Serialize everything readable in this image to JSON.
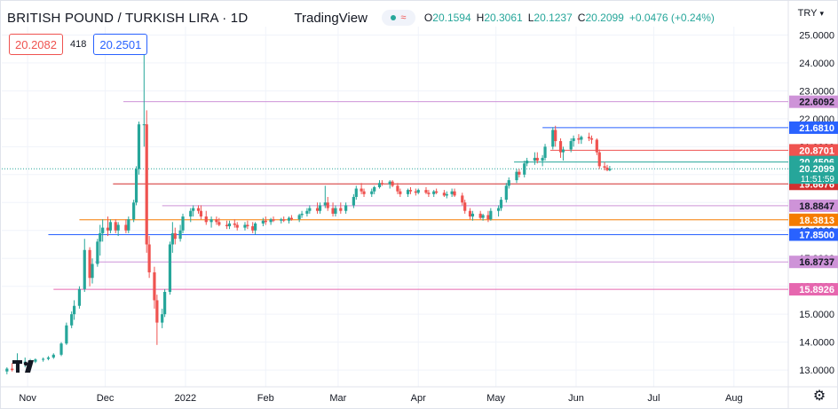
{
  "header": {
    "symbol_title": "BRITISH POUND / TURKISH LIRA · 1D",
    "brand": "TradingView",
    "ohlc": {
      "open_label": "O",
      "open_value": "20.1594",
      "high_label": "H",
      "high_value": "20.3061",
      "low_label": "L",
      "low_value": "20.1237",
      "close_label": "C",
      "close_value": "20.2099",
      "change": "+0.0476 (+0.24%)"
    }
  },
  "trade": {
    "sell_price": "20.2082",
    "spread": "418",
    "buy_price": "20.2501"
  },
  "currency": {
    "label": "TRY",
    "chevron": "chevron-down-icon"
  },
  "chart_data": {
    "type": "candlestick",
    "title": "BRITISH POUND / TURKISH LIRA · 1D",
    "ylim": [
      12.4,
      25.3
    ],
    "y_ticks": [
      {
        "value": 13.0,
        "label": "13.0000"
      },
      {
        "value": 14.0,
        "label": "14.0000"
      },
      {
        "value": 15.0,
        "label": "15.0000"
      },
      {
        "value": 16.0,
        "label": "16.0000"
      },
      {
        "value": 17.0,
        "label": "17.0000"
      },
      {
        "value": 18.0,
        "label": "18.0000"
      },
      {
        "value": 19.0,
        "label": "19.0000"
      },
      {
        "value": 20.0,
        "label": "20.0000"
      },
      {
        "value": 21.0,
        "label": "21.0000"
      },
      {
        "value": 22.0,
        "label": "22.0000"
      },
      {
        "value": 23.0,
        "label": "23.0000"
      },
      {
        "value": 24.0,
        "label": "24.0000"
      },
      {
        "value": 25.0,
        "label": "25.0000"
      }
    ],
    "x_ticks": [
      {
        "label": "Nov",
        "day": 0
      },
      {
        "label": "Dec",
        "day": 30
      },
      {
        "label": "2022",
        "day": 61
      },
      {
        "label": "Feb",
        "day": 92
      },
      {
        "label": "Mar",
        "day": 120
      },
      {
        "label": "Apr",
        "day": 151
      },
      {
        "label": "May",
        "day": 181
      },
      {
        "label": "Jun",
        "day": 212
      },
      {
        "label": "Jul",
        "day": 242
      },
      {
        "label": "Aug",
        "day": 273
      }
    ],
    "x_range_days": [
      -10,
      294
    ],
    "candles": [
      {
        "d": -8,
        "o": 12.95,
        "h": 13.1,
        "l": 12.85,
        "c": 13.05
      },
      {
        "d": -6,
        "o": 13.05,
        "h": 13.25,
        "l": 12.95,
        "c": 13.0
      },
      {
        "d": -4,
        "o": 13.0,
        "h": 13.6,
        "l": 12.95,
        "c": 13.3
      },
      {
        "d": -1,
        "o": 13.25,
        "h": 13.45,
        "l": 13.1,
        "c": 13.3
      },
      {
        "d": 1,
        "o": 13.3,
        "h": 13.4,
        "l": 13.2,
        "c": 13.32
      },
      {
        "d": 3,
        "o": 13.3,
        "h": 13.42,
        "l": 13.25,
        "c": 13.38
      },
      {
        "d": 6,
        "o": 13.38,
        "h": 13.45,
        "l": 13.3,
        "c": 13.4
      },
      {
        "d": 8,
        "o": 13.4,
        "h": 13.5,
        "l": 13.35,
        "c": 13.45
      },
      {
        "d": 10,
        "o": 13.45,
        "h": 13.6,
        "l": 13.4,
        "c": 13.55
      },
      {
        "d": 13,
        "o": 13.55,
        "h": 14.0,
        "l": 13.5,
        "c": 13.95
      },
      {
        "d": 15,
        "o": 13.95,
        "h": 14.7,
        "l": 13.9,
        "c": 14.6
      },
      {
        "d": 17,
        "o": 14.6,
        "h": 15.1,
        "l": 14.5,
        "c": 15.0
      },
      {
        "d": 18,
        "o": 15.0,
        "h": 15.5,
        "l": 14.8,
        "c": 15.3
      },
      {
        "d": 20,
        "o": 15.3,
        "h": 16.0,
        "l": 15.2,
        "c": 15.9
      },
      {
        "d": 22,
        "o": 15.9,
        "h": 17.7,
        "l": 15.8,
        "c": 17.3
      },
      {
        "d": 24,
        "o": 17.3,
        "h": 17.4,
        "l": 16.0,
        "c": 16.3
      },
      {
        "d": 25,
        "o": 16.3,
        "h": 17.0,
        "l": 16.1,
        "c": 16.8
      },
      {
        "d": 27,
        "o": 16.8,
        "h": 17.7,
        "l": 16.7,
        "c": 17.6
      },
      {
        "d": 28,
        "o": 17.6,
        "h": 18.2,
        "l": 17.1,
        "c": 17.9
      },
      {
        "d": 29,
        "o": 17.9,
        "h": 18.4,
        "l": 17.6,
        "c": 18.1
      },
      {
        "d": 31,
        "o": 18.1,
        "h": 18.5,
        "l": 17.8,
        "c": 18.0
      },
      {
        "d": 32,
        "o": 18.0,
        "h": 18.4,
        "l": 17.9,
        "c": 18.3
      },
      {
        "d": 34,
        "o": 18.3,
        "h": 18.4,
        "l": 17.9,
        "c": 18.0
      },
      {
        "d": 35,
        "o": 18.0,
        "h": 18.3,
        "l": 17.8,
        "c": 18.2
      },
      {
        "d": 38,
        "o": 18.2,
        "h": 18.4,
        "l": 17.9,
        "c": 18.0
      },
      {
        "d": 39,
        "o": 18.0,
        "h": 18.5,
        "l": 17.9,
        "c": 18.4
      },
      {
        "d": 41,
        "o": 18.4,
        "h": 19.1,
        "l": 18.3,
        "c": 19.0
      },
      {
        "d": 42,
        "o": 19.0,
        "h": 20.3,
        "l": 18.9,
        "c": 20.2
      },
      {
        "d": 43,
        "o": 20.2,
        "h": 21.9,
        "l": 20.0,
        "c": 21.8
      },
      {
        "d": 45,
        "o": 21.8,
        "h": 24.3,
        "l": 21.0,
        "c": 21.8
      },
      {
        "d": 46,
        "o": 21.8,
        "h": 22.3,
        "l": 17.2,
        "c": 17.5
      },
      {
        "d": 47,
        "o": 17.5,
        "h": 17.8,
        "l": 16.3,
        "c": 16.5
      },
      {
        "d": 49,
        "o": 16.5,
        "h": 16.7,
        "l": 15.2,
        "c": 15.5
      },
      {
        "d": 50,
        "o": 15.5,
        "h": 15.7,
        "l": 13.9,
        "c": 14.7
      },
      {
        "d": 52,
        "o": 14.7,
        "h": 15.2,
        "l": 14.5,
        "c": 15.0
      },
      {
        "d": 53,
        "o": 15.0,
        "h": 15.9,
        "l": 14.9,
        "c": 15.8
      },
      {
        "d": 55,
        "o": 15.8,
        "h": 17.6,
        "l": 15.7,
        "c": 17.5
      },
      {
        "d": 56,
        "o": 17.5,
        "h": 18.3,
        "l": 17.2,
        "c": 17.9
      },
      {
        "d": 57,
        "o": 17.9,
        "h": 18.1,
        "l": 17.5,
        "c": 17.7
      },
      {
        "d": 59,
        "o": 17.7,
        "h": 18.2,
        "l": 17.6,
        "c": 18.0
      },
      {
        "d": 60,
        "o": 18.0,
        "h": 18.6,
        "l": 17.9,
        "c": 18.5
      },
      {
        "d": 63,
        "o": 18.5,
        "h": 18.8,
        "l": 18.3,
        "c": 18.7
      },
      {
        "d": 64,
        "o": 18.7,
        "h": 18.9,
        "l": 18.5,
        "c": 18.8
      },
      {
        "d": 66,
        "o": 18.8,
        "h": 18.9,
        "l": 18.6,
        "c": 18.7
      },
      {
        "d": 67,
        "o": 18.7,
        "h": 18.9,
        "l": 18.4,
        "c": 18.5
      },
      {
        "d": 69,
        "o": 18.5,
        "h": 18.7,
        "l": 18.2,
        "c": 18.3
      },
      {
        "d": 71,
        "o": 18.3,
        "h": 18.5,
        "l": 18.1,
        "c": 18.4
      },
      {
        "d": 73,
        "o": 18.4,
        "h": 18.5,
        "l": 18.2,
        "c": 18.3
      },
      {
        "d": 74,
        "o": 18.3,
        "h": 18.45,
        "l": 18.15,
        "c": 18.2
      },
      {
        "d": 77,
        "o": 18.2,
        "h": 18.35,
        "l": 18.05,
        "c": 18.15
      },
      {
        "d": 78,
        "o": 18.15,
        "h": 18.35,
        "l": 18.05,
        "c": 18.25
      },
      {
        "d": 80,
        "o": 18.25,
        "h": 18.4,
        "l": 18.1,
        "c": 18.2
      },
      {
        "d": 81,
        "o": 18.2,
        "h": 18.3,
        "l": 18.0,
        "c": 18.1
      },
      {
        "d": 84,
        "o": 18.1,
        "h": 18.3,
        "l": 18.0,
        "c": 18.2
      },
      {
        "d": 85,
        "o": 18.2,
        "h": 18.35,
        "l": 18.05,
        "c": 18.15
      },
      {
        "d": 87,
        "o": 18.15,
        "h": 18.3,
        "l": 17.9,
        "c": 18.0
      },
      {
        "d": 88,
        "o": 18.0,
        "h": 18.3,
        "l": 17.85,
        "c": 18.25
      },
      {
        "d": 91,
        "o": 18.25,
        "h": 18.45,
        "l": 18.15,
        "c": 18.35
      },
      {
        "d": 92,
        "o": 18.35,
        "h": 18.5,
        "l": 18.2,
        "c": 18.3
      },
      {
        "d": 94,
        "o": 18.3,
        "h": 18.45,
        "l": 18.2,
        "c": 18.4
      },
      {
        "d": 95,
        "o": 18.4,
        "h": 18.5,
        "l": 18.3,
        "c": 18.35
      },
      {
        "d": 98,
        "o": 18.35,
        "h": 18.45,
        "l": 18.25,
        "c": 18.4
      },
      {
        "d": 99,
        "o": 18.4,
        "h": 18.5,
        "l": 18.3,
        "c": 18.35
      },
      {
        "d": 101,
        "o": 18.35,
        "h": 18.5,
        "l": 18.25,
        "c": 18.45
      },
      {
        "d": 102,
        "o": 18.45,
        "h": 18.55,
        "l": 18.35,
        "c": 18.4
      },
      {
        "d": 105,
        "o": 18.4,
        "h": 18.6,
        "l": 18.3,
        "c": 18.55
      },
      {
        "d": 106,
        "o": 18.55,
        "h": 18.7,
        "l": 18.45,
        "c": 18.6
      },
      {
        "d": 108,
        "o": 18.6,
        "h": 18.8,
        "l": 18.5,
        "c": 18.7
      },
      {
        "d": 109,
        "o": 18.7,
        "h": 18.9,
        "l": 18.6,
        "c": 18.8
      },
      {
        "d": 112,
        "o": 18.8,
        "h": 19.0,
        "l": 18.6,
        "c": 18.7
      },
      {
        "d": 113,
        "o": 18.7,
        "h": 19.0,
        "l": 18.6,
        "c": 18.9
      },
      {
        "d": 115,
        "o": 18.9,
        "h": 19.6,
        "l": 18.8,
        "c": 19.0
      },
      {
        "d": 116,
        "o": 19.0,
        "h": 19.2,
        "l": 18.7,
        "c": 18.8
      },
      {
        "d": 118,
        "o": 18.8,
        "h": 19.0,
        "l": 18.5,
        "c": 18.6
      },
      {
        "d": 119,
        "o": 18.6,
        "h": 18.9,
        "l": 18.5,
        "c": 18.8
      },
      {
        "d": 121,
        "o": 18.8,
        "h": 19.0,
        "l": 18.6,
        "c": 18.7
      },
      {
        "d": 123,
        "o": 18.7,
        "h": 19.0,
        "l": 18.6,
        "c": 18.9
      },
      {
        "d": 126,
        "o": 18.9,
        "h": 19.3,
        "l": 18.8,
        "c": 19.2
      },
      {
        "d": 127,
        "o": 19.2,
        "h": 19.6,
        "l": 19.1,
        "c": 19.5
      },
      {
        "d": 129,
        "o": 19.5,
        "h": 19.7,
        "l": 19.3,
        "c": 19.4
      },
      {
        "d": 130,
        "o": 19.4,
        "h": 19.5,
        "l": 19.2,
        "c": 19.3
      },
      {
        "d": 133,
        "o": 19.3,
        "h": 19.5,
        "l": 19.2,
        "c": 19.4
      },
      {
        "d": 134,
        "o": 19.4,
        "h": 19.6,
        "l": 19.3,
        "c": 19.55
      },
      {
        "d": 136,
        "o": 19.55,
        "h": 19.8,
        "l": 19.5,
        "c": 19.7
      },
      {
        "d": 137,
        "o": 19.7,
        "h": 19.8,
        "l": 19.6,
        "c": 19.65
      },
      {
        "d": 140,
        "o": 19.65,
        "h": 19.8,
        "l": 19.5,
        "c": 19.75
      },
      {
        "d": 141,
        "o": 19.75,
        "h": 19.8,
        "l": 19.55,
        "c": 19.6
      },
      {
        "d": 143,
        "o": 19.6,
        "h": 19.7,
        "l": 19.3,
        "c": 19.4
      },
      {
        "d": 144,
        "o": 19.4,
        "h": 19.5,
        "l": 19.2,
        "c": 19.3
      },
      {
        "d": 147,
        "o": 19.3,
        "h": 19.5,
        "l": 19.2,
        "c": 19.45
      },
      {
        "d": 148,
        "o": 19.45,
        "h": 19.55,
        "l": 19.3,
        "c": 19.4
      },
      {
        "d": 150,
        "o": 19.4,
        "h": 19.5,
        "l": 19.25,
        "c": 19.35
      },
      {
        "d": 151,
        "o": 19.35,
        "h": 19.5,
        "l": 19.3,
        "c": 19.45
      },
      {
        "d": 154,
        "o": 19.45,
        "h": 19.55,
        "l": 19.3,
        "c": 19.35
      },
      {
        "d": 155,
        "o": 19.35,
        "h": 19.45,
        "l": 19.2,
        "c": 19.3
      },
      {
        "d": 157,
        "o": 19.3,
        "h": 19.45,
        "l": 19.2,
        "c": 19.4
      },
      {
        "d": 158,
        "o": 19.4,
        "h": 19.5,
        "l": 19.3,
        "c": 19.35
      },
      {
        "d": 161,
        "o": 19.35,
        "h": 19.45,
        "l": 19.2,
        "c": 19.25
      },
      {
        "d": 162,
        "o": 19.25,
        "h": 19.4,
        "l": 19.15,
        "c": 19.3
      },
      {
        "d": 164,
        "o": 19.3,
        "h": 19.5,
        "l": 19.2,
        "c": 19.4
      },
      {
        "d": 165,
        "o": 19.4,
        "h": 19.5,
        "l": 19.2,
        "c": 19.25
      },
      {
        "d": 168,
        "o": 19.25,
        "h": 19.35,
        "l": 18.9,
        "c": 19.0
      },
      {
        "d": 169,
        "o": 19.0,
        "h": 19.1,
        "l": 18.6,
        "c": 18.7
      },
      {
        "d": 171,
        "o": 18.7,
        "h": 18.8,
        "l": 18.4,
        "c": 18.5
      },
      {
        "d": 172,
        "o": 18.5,
        "h": 18.7,
        "l": 18.35,
        "c": 18.6
      },
      {
        "d": 175,
        "o": 18.6,
        "h": 18.7,
        "l": 18.4,
        "c": 18.45
      },
      {
        "d": 176,
        "o": 18.45,
        "h": 18.6,
        "l": 18.35,
        "c": 18.55
      },
      {
        "d": 178,
        "o": 18.55,
        "h": 18.7,
        "l": 18.3,
        "c": 18.4
      },
      {
        "d": 179,
        "o": 18.4,
        "h": 18.8,
        "l": 18.35,
        "c": 18.7
      },
      {
        "d": 182,
        "o": 18.7,
        "h": 18.9,
        "l": 18.5,
        "c": 18.8
      },
      {
        "d": 183,
        "o": 18.8,
        "h": 19.2,
        "l": 18.7,
        "c": 19.1
      },
      {
        "d": 185,
        "o": 19.1,
        "h": 19.7,
        "l": 19.0,
        "c": 19.6
      },
      {
        "d": 186,
        "o": 19.6,
        "h": 19.9,
        "l": 19.5,
        "c": 19.8
      },
      {
        "d": 189,
        "o": 19.8,
        "h": 20.2,
        "l": 19.7,
        "c": 20.1
      },
      {
        "d": 190,
        "o": 20.1,
        "h": 20.2,
        "l": 19.9,
        "c": 20.0
      },
      {
        "d": 192,
        "o": 20.0,
        "h": 20.5,
        "l": 19.9,
        "c": 20.4
      },
      {
        "d": 193,
        "o": 20.4,
        "h": 20.6,
        "l": 20.3,
        "c": 20.5
      },
      {
        "d": 196,
        "o": 20.5,
        "h": 20.8,
        "l": 20.35,
        "c": 20.6
      },
      {
        "d": 197,
        "o": 20.6,
        "h": 20.8,
        "l": 20.4,
        "c": 20.5
      },
      {
        "d": 199,
        "o": 20.5,
        "h": 20.7,
        "l": 20.3,
        "c": 20.6
      },
      {
        "d": 200,
        "o": 20.6,
        "h": 21.1,
        "l": 20.5,
        "c": 21.0
      },
      {
        "d": 203,
        "o": 21.0,
        "h": 21.7,
        "l": 20.9,
        "c": 21.6
      },
      {
        "d": 204,
        "o": 21.6,
        "h": 21.75,
        "l": 21.0,
        "c": 21.2
      },
      {
        "d": 206,
        "o": 21.2,
        "h": 21.3,
        "l": 20.6,
        "c": 20.8
      },
      {
        "d": 207,
        "o": 20.8,
        "h": 21.0,
        "l": 20.5,
        "c": 20.9
      },
      {
        "d": 210,
        "o": 20.9,
        "h": 21.3,
        "l": 20.8,
        "c": 21.2
      },
      {
        "d": 211,
        "o": 21.2,
        "h": 21.4,
        "l": 21.0,
        "c": 21.3
      },
      {
        "d": 213,
        "o": 21.3,
        "h": 21.45,
        "l": 21.1,
        "c": 21.25
      },
      {
        "d": 214,
        "o": 21.25,
        "h": 21.4,
        "l": 21.1,
        "c": 21.35
      },
      {
        "d": 217,
        "o": 21.35,
        "h": 21.5,
        "l": 21.2,
        "c": 21.3
      },
      {
        "d": 218,
        "o": 21.3,
        "h": 21.4,
        "l": 21.1,
        "c": 21.25
      },
      {
        "d": 220,
        "o": 21.25,
        "h": 21.3,
        "l": 20.7,
        "c": 20.8
      },
      {
        "d": 221,
        "o": 20.8,
        "h": 20.9,
        "l": 20.2,
        "c": 20.3
      },
      {
        "d": 223,
        "o": 20.3,
        "h": 20.45,
        "l": 20.15,
        "c": 20.25
      },
      {
        "d": 224,
        "o": 20.25,
        "h": 20.35,
        "l": 20.12,
        "c": 20.16
      },
      {
        "d": 225,
        "o": 20.16,
        "h": 20.31,
        "l": 20.12,
        "c": 20.21
      }
    ],
    "horizontal_levels": [
      {
        "value": 22.6092,
        "label": "22.6092",
        "color": "#ce93d8",
        "from_day": 37
      },
      {
        "value": 21.681,
        "label": "21.6810",
        "color": "#2962ff",
        "from_day": 199
      },
      {
        "value": 20.8701,
        "label": "20.8701",
        "color": "#ef5350",
        "from_day": 202
      },
      {
        "value": 20.4506,
        "label": "20.4506",
        "color": "#26a69a",
        "from_day": 188
      },
      {
        "value": 19.6676,
        "label": "19.6676",
        "color": "#d32f2f",
        "from_day": 33
      },
      {
        "value": 18.8847,
        "label": "18.8847",
        "color": "#ce93d8",
        "from_day": 52
      },
      {
        "value": 18.3813,
        "label": "18.3813",
        "color": "#f57c00",
        "from_day": 20
      },
      {
        "value": 17.85,
        "label": "17.8500",
        "color": "#2962ff",
        "from_day": 8
      },
      {
        "value": 16.8737,
        "label": "16.8737",
        "color": "#ce93d8",
        "from_day": 26
      },
      {
        "value": 15.8926,
        "label": "15.8926",
        "color": "#e667af",
        "from_day": 10
      }
    ],
    "last_price": {
      "value": 20.2099,
      "label": "20.2099",
      "countdown": "11:51:59",
      "color": "#26a69a"
    },
    "colors": {
      "up": "#26a69a",
      "down": "#ef5350",
      "grid": "#f0f3fa",
      "axis_text": "#131722"
    },
    "grid": true,
    "legend": "top-left"
  }
}
